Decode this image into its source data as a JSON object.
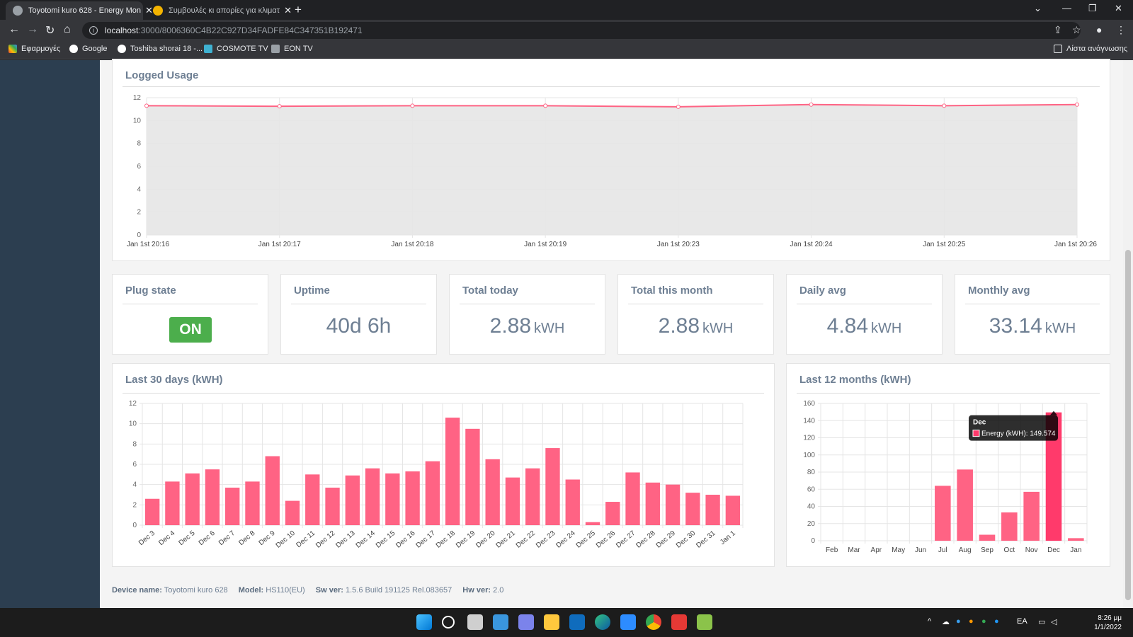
{
  "browser": {
    "tabs": [
      {
        "title": "Toyotomi kuro 628 - Energy Mon",
        "active": true
      },
      {
        "title": "Συμβουλές κι απορίες για κλιματ",
        "active": false
      }
    ],
    "url_host": "localhost",
    "url_path": ":3000/8006360C4B22C927D34FADFE84C347351B192471",
    "bookmarks": [
      "Εφαρμογές",
      "Google",
      "Toshiba shorai 18 -...",
      "COSMOTE TV",
      "EON TV"
    ],
    "reading_list": "Λίστα ανάγνωσης"
  },
  "logged_usage": {
    "title": "Logged Usage",
    "chart_data": {
      "type": "area",
      "x": [
        "Jan 1st 20:16",
        "Jan 1st 20:17",
        "Jan 1st 20:18",
        "Jan 1st 20:19",
        "Jan 1st 20:23",
        "Jan 1st 20:24",
        "Jan 1st 20:25",
        "Jan 1st 20:26"
      ],
      "values": [
        11.3,
        11.25,
        11.3,
        11.3,
        11.2,
        11.4,
        11.3,
        11.4
      ],
      "ylim": [
        0,
        12
      ],
      "yticks": [
        0,
        2,
        4,
        6,
        8,
        10,
        12
      ],
      "color": "#ff6384",
      "fill": "#e6e6e6",
      "grid": true
    }
  },
  "stats": {
    "plug_state": {
      "title": "Plug state",
      "value": "ON"
    },
    "uptime": {
      "title": "Uptime",
      "value": "40d 6h"
    },
    "total_today": {
      "title": "Total today",
      "value": "2.88",
      "unit": "kWH"
    },
    "total_month": {
      "title": "Total this month",
      "value": "2.88",
      "unit": "kWH"
    },
    "daily_avg": {
      "title": "Daily avg",
      "value": "4.84",
      "unit": "kWH"
    },
    "monthly_avg": {
      "title": "Monthly avg",
      "value": "33.14",
      "unit": "kWH"
    }
  },
  "last30": {
    "title": "Last 30 days (kWH)",
    "chart_data": {
      "type": "bar",
      "categories": [
        "Dec 3",
        "Dec 4",
        "Dec 5",
        "Dec 6",
        "Dec 7",
        "Dec 8",
        "Dec 9",
        "Dec 10",
        "Dec 11",
        "Dec 12",
        "Dec 13",
        "Dec 14",
        "Dec 15",
        "Dec 16",
        "Dec 17",
        "Dec 18",
        "Dec 19",
        "Dec 20",
        "Dec 21",
        "Dec 22",
        "Dec 23",
        "Dec 24",
        "Dec 25",
        "Dec 26",
        "Dec 27",
        "Dec 28",
        "Dec 29",
        "Dec 30",
        "Dec 31",
        "Jan 1"
      ],
      "values": [
        2.6,
        4.3,
        5.1,
        5.5,
        3.7,
        4.3,
        6.8,
        2.4,
        5.0,
        3.7,
        4.9,
        5.6,
        5.1,
        5.3,
        6.3,
        10.6,
        9.5,
        6.5,
        4.7,
        5.6,
        7.6,
        4.5,
        0.3,
        2.3,
        5.2,
        4.2,
        4.0,
        3.2,
        3.0,
        2.9
      ],
      "ylim": [
        0,
        12
      ],
      "yticks": [
        0,
        2,
        4,
        6,
        8,
        10,
        12
      ],
      "color": "#ff6384",
      "grid": true
    }
  },
  "last12": {
    "title": "Last 12 months (kWH)",
    "chart_data": {
      "type": "bar",
      "categories": [
        "Feb",
        "Mar",
        "Apr",
        "May",
        "Jun",
        "Jul",
        "Aug",
        "Sep",
        "Oct",
        "Nov",
        "Dec",
        "Jan"
      ],
      "values": [
        0,
        0,
        0,
        0,
        0,
        64,
        83,
        7,
        33,
        57,
        149.574,
        3
      ],
      "ylim": [
        0,
        160
      ],
      "yticks": [
        0,
        20,
        40,
        60,
        80,
        100,
        120,
        140,
        160
      ],
      "color": "#ff6384",
      "highlight_color": "#ff3a6b",
      "highlight_index": 10,
      "grid": true
    },
    "tooltip": {
      "title": "Dec",
      "label": "Energy (kWH): 149.574"
    }
  },
  "footer": {
    "device_label": "Device name:",
    "device": "Toyotomi kuro 628",
    "model_label": "Model:",
    "model": "HS110(EU)",
    "sw_label": "Sw ver:",
    "sw": "1.5.6 Build 191125 Rel.083657",
    "hw_label": "Hw ver:",
    "hw": "2.0"
  },
  "taskbar": {
    "lang": "EA",
    "time": "8:26 μμ",
    "date": "1/1/2022"
  }
}
